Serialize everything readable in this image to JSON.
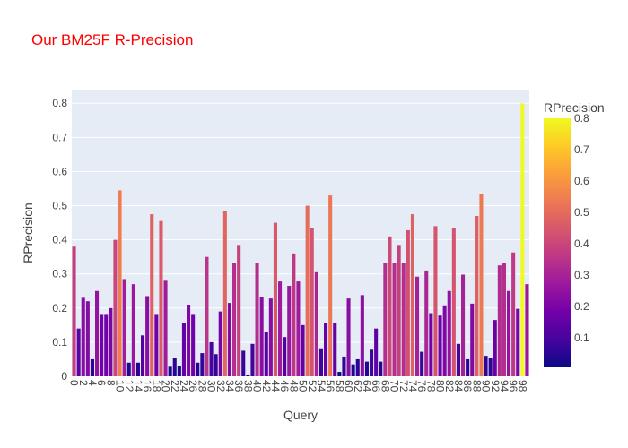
{
  "chart_data": {
    "type": "bar",
    "title": "Our BM25F R-Precision",
    "xlabel": "Query",
    "ylabel": "RPrecision",
    "ylim": [
      0,
      0.84
    ],
    "y_ticks": [
      0,
      0.1,
      0.2,
      0.3,
      0.4,
      0.5,
      0.6,
      0.7,
      0.8
    ],
    "x_ticks": [
      0,
      2,
      4,
      6,
      8,
      10,
      12,
      14,
      16,
      18,
      20,
      22,
      24,
      26,
      28,
      30,
      32,
      34,
      36,
      38,
      40,
      42,
      44,
      46,
      48,
      50,
      52,
      54,
      56,
      58,
      60,
      62,
      64,
      66,
      68,
      70,
      72,
      74,
      76,
      78,
      80,
      82,
      84,
      86,
      88,
      90,
      92,
      94,
      96,
      98
    ],
    "x": [
      0,
      1,
      2,
      3,
      4,
      5,
      6,
      7,
      8,
      9,
      10,
      11,
      12,
      13,
      14,
      15,
      16,
      17,
      18,
      19,
      20,
      21,
      22,
      23,
      24,
      25,
      26,
      27,
      28,
      29,
      30,
      31,
      32,
      33,
      34,
      35,
      36,
      37,
      38,
      39,
      40,
      41,
      42,
      43,
      44,
      45,
      46,
      47,
      48,
      49,
      50,
      51,
      52,
      53,
      54,
      55,
      56,
      57,
      58,
      59,
      60,
      61,
      62,
      63,
      64,
      65,
      66,
      67,
      68,
      69,
      70,
      71,
      72,
      73,
      74,
      75,
      76,
      77,
      78,
      79,
      80,
      81,
      82,
      83,
      84,
      85,
      86,
      87,
      88,
      89,
      90,
      91,
      92,
      93,
      94,
      95,
      96,
      97,
      98,
      99
    ],
    "values": [
      0.38,
      0.14,
      0.23,
      0.22,
      0.05,
      0.25,
      0.18,
      0.18,
      0.2,
      0.4,
      0.545,
      0.285,
      0.04,
      0.27,
      0.04,
      0.12,
      0.235,
      0.475,
      0.18,
      0.455,
      0.28,
      0.028,
      0.055,
      0.03,
      0.155,
      0.21,
      0.18,
      0.04,
      0.068,
      0.35,
      0.1,
      0.065,
      0.19,
      0.485,
      0.215,
      0.333,
      0.385,
      0.075,
      0.005,
      0.095,
      0.333,
      0.233,
      0.13,
      0.228,
      0.45,
      0.278,
      0.115,
      0.265,
      0.36,
      0.278,
      0.15,
      0.5,
      0.435,
      0.305,
      0.082,
      0.155,
      0.53,
      0.155,
      0.013,
      0.058,
      0.228,
      0.035,
      0.05,
      0.238,
      0.043,
      0.078,
      0.14,
      0.043,
      0.333,
      0.41,
      0.333,
      0.385,
      0.333,
      0.428,
      0.475,
      0.292,
      0.072,
      0.31,
      0.185,
      0.44,
      0.178,
      0.208,
      0.25,
      0.435,
      0.095,
      0.298,
      0.05,
      0.213,
      0.47,
      0.535,
      0.06,
      0.055,
      0.165,
      0.325,
      0.333,
      0.25,
      0.363,
      0.198,
      0.8,
      0.27
    ],
    "colorbar": {
      "title": "RPrecision",
      "ticks": [
        0.1,
        0.2,
        0.3,
        0.4,
        0.5,
        0.6,
        0.7,
        0.8
      ],
      "range": [
        0.005,
        0.8
      ]
    },
    "colors": {
      "title": "#ff0000",
      "plot_bg": "#e5ecf6",
      "grid": "#ffffff"
    }
  }
}
